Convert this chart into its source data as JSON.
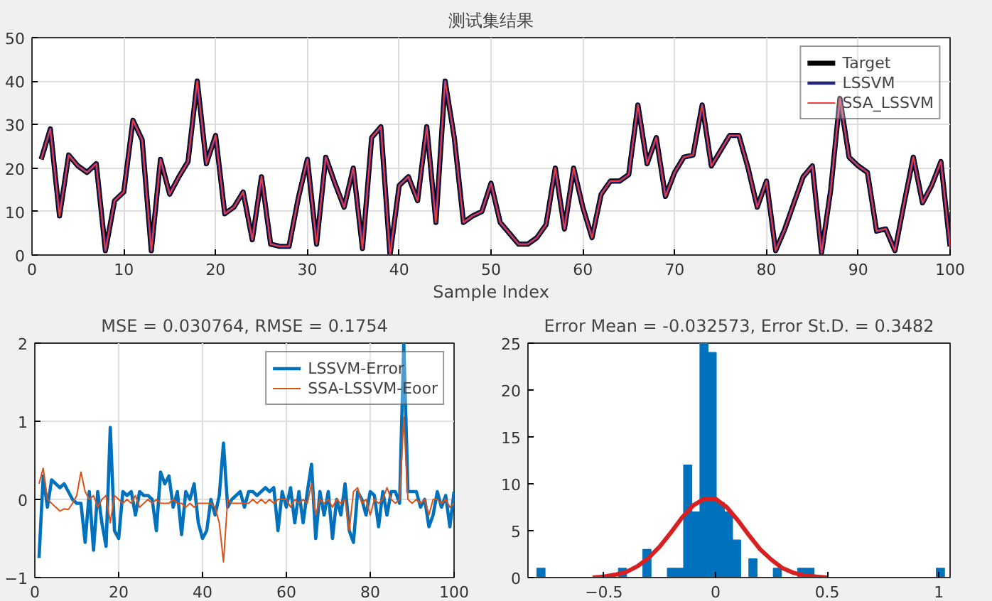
{
  "chart_data": [
    {
      "type": "line",
      "title": "测试集结果",
      "xlabel": "Sample Index",
      "xlim": [
        0,
        100
      ],
      "xticks": [
        0,
        10,
        20,
        30,
        40,
        50,
        60,
        70,
        80,
        90,
        100
      ],
      "ylim": [
        0,
        50
      ],
      "yticks": [
        0,
        10,
        20,
        30,
        40,
        50
      ],
      "grid": true,
      "legend": "top right",
      "x": [
        1,
        2,
        3,
        4,
        5,
        6,
        7,
        8,
        9,
        10,
        11,
        12,
        13,
        14,
        15,
        16,
        17,
        18,
        19,
        20,
        21,
        22,
        23,
        24,
        25,
        26,
        27,
        28,
        29,
        30,
        31,
        32,
        33,
        34,
        35,
        36,
        37,
        38,
        39,
        40,
        41,
        42,
        43,
        44,
        45,
        46,
        47,
        48,
        49,
        50,
        51,
        52,
        53,
        54,
        55,
        56,
        57,
        58,
        59,
        60,
        61,
        62,
        63,
        64,
        65,
        66,
        67,
        68,
        69,
        70,
        71,
        72,
        73,
        74,
        75,
        76,
        77,
        78,
        79,
        80,
        81,
        82,
        83,
        84,
        85,
        86,
        87,
        88,
        89,
        90,
        91,
        92,
        93,
        94,
        95,
        96,
        97,
        98,
        99,
        100
      ],
      "series": [
        {
          "name": "Target",
          "color": "#000000",
          "values": [
            22,
            29,
            9,
            23,
            20.5,
            19,
            21,
            1,
            12.5,
            14.5,
            31,
            26.5,
            1,
            22,
            14,
            18,
            21.5,
            40,
            21,
            27.5,
            9.5,
            11,
            14.5,
            3.5,
            18,
            2.5,
            2,
            2,
            13,
            22,
            2.5,
            22.5,
            16.5,
            11,
            20,
            1.5,
            27,
            29.5,
            0,
            16,
            18,
            12.5,
            29.5,
            7.5,
            40,
            27,
            7.5,
            9,
            10,
            16.5,
            7.5,
            5,
            2.5,
            2.5,
            4,
            7,
            20,
            6,
            20,
            11,
            4,
            14,
            17,
            17,
            18.5,
            34.5,
            21,
            27,
            13.5,
            19,
            22.5,
            23,
            34.5,
            20.5,
            24,
            27.5,
            27.5,
            20,
            11,
            17,
            1,
            6,
            12,
            18,
            20.5,
            0.5,
            15,
            36,
            22.5,
            20.5,
            19,
            5.5,
            6,
            1,
            12,
            22.5,
            12,
            16,
            21.5,
            2
          ]
        },
        {
          "name": "LSSVM",
          "color": "#23237a",
          "values": [
            22,
            29,
            9,
            23,
            20.5,
            19,
            21,
            1,
            12.5,
            14.5,
            31,
            26.5,
            1,
            22,
            14,
            18,
            21.5,
            40,
            21,
            27.5,
            9.5,
            11,
            14.5,
            3.5,
            18,
            2.5,
            2,
            2,
            13,
            22,
            2.5,
            22.5,
            16.5,
            11,
            20,
            1.5,
            27,
            29.5,
            0,
            16,
            18,
            12.5,
            29.5,
            7.5,
            40,
            27,
            7.5,
            9,
            10,
            16.5,
            7.5,
            5,
            2.5,
            2.5,
            4,
            7,
            20,
            6,
            20,
            11,
            4,
            14,
            17,
            17,
            18.5,
            34.5,
            21,
            27,
            13.5,
            19,
            22.5,
            23,
            34.5,
            20.5,
            24,
            27.5,
            27.5,
            20,
            11,
            17,
            1,
            6,
            12,
            18,
            20.5,
            0.5,
            15,
            36,
            22.5,
            20.5,
            19,
            5.5,
            6,
            1,
            12,
            22.5,
            12,
            16,
            21.5,
            2
          ]
        },
        {
          "name": "SSA_LSSVM",
          "color": "#f03c3c",
          "values": [
            22,
            29,
            9,
            23,
            20.5,
            19,
            21,
            1,
            12.5,
            14.5,
            31,
            26.5,
            1,
            22,
            14,
            18,
            21.5,
            40,
            21,
            27.5,
            9.5,
            11,
            14.5,
            3.5,
            18,
            2.5,
            2,
            2,
            13,
            22,
            2.5,
            22.5,
            16.5,
            11,
            20,
            1.5,
            27,
            29.5,
            0,
            16,
            18,
            12.5,
            29.5,
            7.5,
            40,
            27,
            7.5,
            9,
            10,
            16.5,
            7.5,
            5,
            2.5,
            2.5,
            4,
            7,
            20,
            6,
            20,
            11,
            4,
            14,
            17,
            17,
            18.5,
            34.5,
            21,
            27,
            13.5,
            19,
            22.5,
            23,
            34.5,
            20.5,
            24,
            27.5,
            27.5,
            20,
            11,
            17,
            1,
            6,
            12,
            18,
            20.5,
            0.5,
            15,
            36,
            22.5,
            20.5,
            19,
            5.5,
            6,
            1,
            12,
            22.5,
            12,
            16,
            21.5,
            2
          ]
        }
      ]
    },
    {
      "type": "line",
      "title": "MSE = 0.030764, RMSE = 0.1754",
      "xlim": [
        0,
        100
      ],
      "xticks": [
        0,
        20,
        40,
        60,
        80,
        100
      ],
      "ylim": [
        -1,
        2
      ],
      "yticks": [
        -1,
        0,
        1,
        2
      ],
      "grid": true,
      "legend": "top right",
      "x": [
        1,
        2,
        3,
        4,
        5,
        6,
        7,
        8,
        9,
        10,
        11,
        12,
        13,
        14,
        15,
        16,
        17,
        18,
        19,
        20,
        21,
        22,
        23,
        24,
        25,
        26,
        27,
        28,
        29,
        30,
        31,
        32,
        33,
        34,
        35,
        36,
        37,
        38,
        39,
        40,
        41,
        42,
        43,
        44,
        45,
        46,
        47,
        48,
        49,
        50,
        51,
        52,
        53,
        54,
        55,
        56,
        57,
        58,
        59,
        60,
        61,
        62,
        63,
        64,
        65,
        66,
        67,
        68,
        69,
        70,
        71,
        72,
        73,
        74,
        75,
        76,
        77,
        78,
        79,
        80,
        81,
        82,
        83,
        84,
        85,
        86,
        87,
        88,
        89,
        90,
        91,
        92,
        93,
        94,
        95,
        96,
        97,
        98,
        99,
        100
      ],
      "series": [
        {
          "name": "LSSVM-Error",
          "color": "#0072bd",
          "values": [
            -0.75,
            0.3,
            -0.1,
            0.25,
            0.2,
            0.15,
            0.2,
            0.1,
            0.0,
            -0.05,
            -0.05,
            -0.55,
            0.1,
            -0.65,
            0.1,
            -0.3,
            -0.6,
            0.92,
            -0.4,
            -0.5,
            0.1,
            0.05,
            0.1,
            -0.2,
            0.1,
            0.05,
            0.05,
            0.0,
            -0.4,
            0.35,
            0.2,
            0.3,
            -0.1,
            0.1,
            -0.45,
            0.1,
            0.0,
            0.2,
            -0.3,
            -0.5,
            -0.4,
            0.0,
            -0.2,
            0.05,
            0.72,
            -0.1,
            0.0,
            0.05,
            0.1,
            -0.1,
            0.1,
            0.1,
            0.05,
            0.1,
            0.15,
            0.1,
            0.15,
            -0.4,
            0.1,
            -0.1,
            0.15,
            -0.3,
            0.1,
            -0.3,
            0.1,
            0.45,
            -0.5,
            0.1,
            -0.2,
            0.1,
            -0.5,
            0.0,
            -0.2,
            0.2,
            -0.4,
            -0.55,
            0.1,
            0.0,
            -0.2,
            0.1,
            0.05,
            -0.35,
            0.1,
            -0.2,
            0.1,
            0.1,
            -0.05,
            2.0,
            0.1,
            0.1,
            0.1,
            -0.1,
            0.0,
            -0.35,
            -0.2,
            0.1,
            -0.1,
            0.05,
            -0.35,
            0.1
          ]
        },
        {
          "name": "SSA-LSSVM-Eoor",
          "color": "#d95319",
          "values": [
            0.2,
            0.4,
            0.0,
            -0.05,
            -0.1,
            -0.15,
            -0.12,
            -0.13,
            -0.05,
            0.05,
            0.35,
            0.1,
            0.0,
            0.05,
            -0.1,
            0.0,
            0.05,
            -0.3,
            0.05,
            0.0,
            -0.05,
            0.0,
            -0.05,
            0.05,
            -0.1,
            -0.05,
            0.0,
            -0.05,
            0.0,
            -0.05,
            -0.05,
            -0.05,
            0.0,
            -0.05,
            -0.05,
            -0.1,
            -0.05,
            -0.1,
            -0.05,
            -0.05,
            -0.05,
            -0.05,
            -0.1,
            -0.3,
            -0.8,
            0.0,
            -0.05,
            -0.05,
            -0.05,
            -0.05,
            -0.05,
            0.0,
            -0.05,
            0.0,
            -0.05,
            0.0,
            -0.05,
            0.0,
            0.0,
            0.0,
            -0.1,
            0.0,
            -0.05,
            0.0,
            -0.05,
            0.2,
            -0.2,
            0.0,
            -0.05,
            0.0,
            -0.1,
            0.0,
            -0.05,
            0.0,
            -0.4,
            0.1,
            0.15,
            -0.05,
            0.0,
            -0.2,
            0.0,
            -0.05,
            0.0,
            0.15,
            0.0,
            -0.05,
            0.0,
            1.05,
            0.0,
            -0.05,
            0.0,
            -0.05,
            0.0,
            -0.2,
            0.0,
            0.0,
            -0.05,
            0.0,
            -0.1,
            -0.05
          ]
        }
      ]
    },
    {
      "type": "histogram",
      "title": "Error Mean = -0.032573, Error St.D. = 0.3482",
      "xlim": [
        -0.84,
        1.05
      ],
      "xticks": [
        -0.5,
        0,
        0.5,
        1
      ],
      "ylim": [
        0,
        25
      ],
      "yticks": [
        0,
        5,
        10,
        15,
        20,
        25
      ],
      "series": [
        {
          "type": "histogram",
          "color": "#0072bd",
          "bins": [
            -0.8,
            -0.7635,
            -0.727,
            -0.6905,
            -0.654,
            -0.6175,
            -0.581,
            -0.5445,
            -0.508,
            -0.4715,
            -0.435,
            -0.3985,
            -0.362,
            -0.3255,
            -0.289,
            -0.2525,
            -0.216,
            -0.1795,
            -0.143,
            -0.1065,
            -0.07,
            -0.0335,
            0.003,
            0.0395,
            0.076,
            0.1125,
            0.149,
            0.1855,
            0.222,
            0.2585,
            0.295,
            0.3315,
            0.368,
            0.4045,
            0.441,
            0.4775,
            0.514,
            0.5505,
            0.587,
            0.6235,
            0.66,
            0.6965,
            0.733,
            0.7695,
            0.806,
            0.8425,
            0.879,
            0.9155,
            0.952,
            0.9885,
            1.025
          ],
          "values": [
            1,
            0,
            0,
            0,
            0,
            0,
            0,
            0,
            0,
            0,
            1,
            0,
            0,
            3,
            0,
            0,
            1,
            1,
            12,
            7,
            25,
            24,
            8,
            7,
            4,
            0,
            2,
            0,
            0,
            1,
            0,
            0,
            1,
            1,
            0,
            0,
            0,
            0,
            0,
            0,
            0,
            0,
            0,
            0,
            0,
            0,
            0,
            0,
            0,
            1
          ]
        },
        {
          "type": "line",
          "color": "#d92020",
          "x": [
            -0.55,
            -0.5,
            -0.45,
            -0.4,
            -0.35,
            -0.3,
            -0.25,
            -0.2,
            -0.15,
            -0.1,
            -0.05,
            0,
            0.05,
            0.1,
            0.15,
            0.2,
            0.25,
            0.3,
            0.35,
            0.4,
            0.45,
            0.5
          ],
          "values": [
            0.0,
            0.1,
            0.3,
            0.6,
            1.2,
            2.1,
            3.3,
            4.8,
            6.4,
            7.7,
            8.4,
            8.4,
            7.5,
            6.1,
            4.5,
            3.0,
            1.9,
            1.0,
            0.5,
            0.2,
            0.1,
            0.0
          ]
        }
      ]
    }
  ]
}
